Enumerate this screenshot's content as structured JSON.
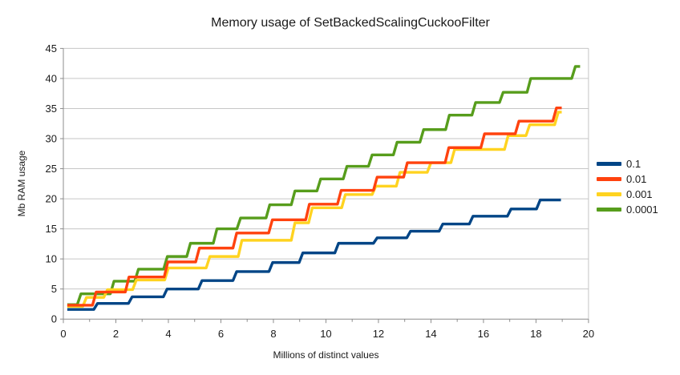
{
  "chart_data": {
    "type": "line",
    "line_style": "step",
    "title": "Memory usage of SetBackedScalingCuckooFilter",
    "xlabel": "Millions of distinct values",
    "ylabel": "Mb RAM usage",
    "xlim": [
      0,
      20
    ],
    "ylim": [
      0,
      45
    ],
    "x_ticks": [
      0,
      2,
      4,
      6,
      8,
      10,
      12,
      14,
      16,
      18,
      20
    ],
    "y_ticks": [
      0,
      5,
      10,
      15,
      20,
      25,
      30,
      35,
      40,
      45
    ],
    "grid": true,
    "legend_position": "right",
    "series": [
      {
        "name": "0.1",
        "color": "#004586",
        "end_x": 18.95,
        "points": [
          [
            0.15,
            1.6
          ],
          [
            1.3,
            2.6
          ],
          [
            2.62,
            3.7
          ],
          [
            3.95,
            5.0
          ],
          [
            5.28,
            6.4
          ],
          [
            6.6,
            7.9
          ],
          [
            7.97,
            9.4
          ],
          [
            9.12,
            11.0
          ],
          [
            10.48,
            12.6
          ],
          [
            11.95,
            13.5
          ],
          [
            13.22,
            14.6
          ],
          [
            14.45,
            15.8
          ],
          [
            15.6,
            17.1
          ],
          [
            17.05,
            18.3
          ],
          [
            18.16,
            19.8
          ]
        ]
      },
      {
        "name": "0.01",
        "color": "#FF420E",
        "end_x": 18.98,
        "points": [
          [
            0.15,
            2.3
          ],
          [
            1.25,
            4.5
          ],
          [
            2.5,
            7.0
          ],
          [
            3.98,
            9.5
          ],
          [
            5.18,
            11.8
          ],
          [
            6.6,
            14.3
          ],
          [
            7.96,
            16.5
          ],
          [
            9.37,
            19.1
          ],
          [
            10.58,
            21.4
          ],
          [
            11.95,
            23.6
          ],
          [
            13.1,
            26.0
          ],
          [
            14.68,
            28.5
          ],
          [
            16.04,
            30.8
          ],
          [
            17.35,
            32.9
          ],
          [
            18.78,
            35.1
          ]
        ]
      },
      {
        "name": "0.001",
        "color": "#FFD320",
        "end_x": 18.98,
        "points": [
          [
            0.15,
            2.1
          ],
          [
            0.88,
            3.6
          ],
          [
            1.68,
            4.9
          ],
          [
            2.78,
            6.5
          ],
          [
            4.0,
            8.5
          ],
          [
            5.58,
            10.4
          ],
          [
            6.8,
            13.1
          ],
          [
            8.82,
            16.0
          ],
          [
            9.48,
            18.5
          ],
          [
            10.74,
            20.7
          ],
          [
            11.9,
            22.1
          ],
          [
            12.82,
            24.4
          ],
          [
            14.0,
            26.0
          ],
          [
            14.9,
            28.2
          ],
          [
            16.94,
            30.5
          ],
          [
            17.76,
            32.3
          ],
          [
            18.85,
            34.4
          ]
        ]
      },
      {
        "name": "0.0001",
        "color": "#579D1C",
        "end_x": 19.68,
        "points": [
          [
            0.15,
            2.4
          ],
          [
            0.67,
            4.2
          ],
          [
            1.93,
            6.3
          ],
          [
            2.86,
            8.3
          ],
          [
            3.96,
            10.4
          ],
          [
            4.84,
            12.6
          ],
          [
            5.85,
            15.0
          ],
          [
            6.75,
            16.8
          ],
          [
            7.86,
            19.0
          ],
          [
            8.82,
            21.3
          ],
          [
            9.8,
            23.3
          ],
          [
            10.8,
            25.4
          ],
          [
            11.76,
            27.3
          ],
          [
            12.71,
            29.4
          ],
          [
            13.72,
            31.5
          ],
          [
            14.7,
            33.9
          ],
          [
            15.7,
            36.0
          ],
          [
            16.75,
            37.7
          ],
          [
            17.8,
            40.0
          ],
          [
            19.5,
            42.0
          ]
        ]
      }
    ]
  },
  "style": {
    "grid_color": "#c6c6c6",
    "axis_color": "#8c8c8c",
    "tick_label_color": "#1a1a1a",
    "background": "#ffffff",
    "line_width": 3.4
  }
}
